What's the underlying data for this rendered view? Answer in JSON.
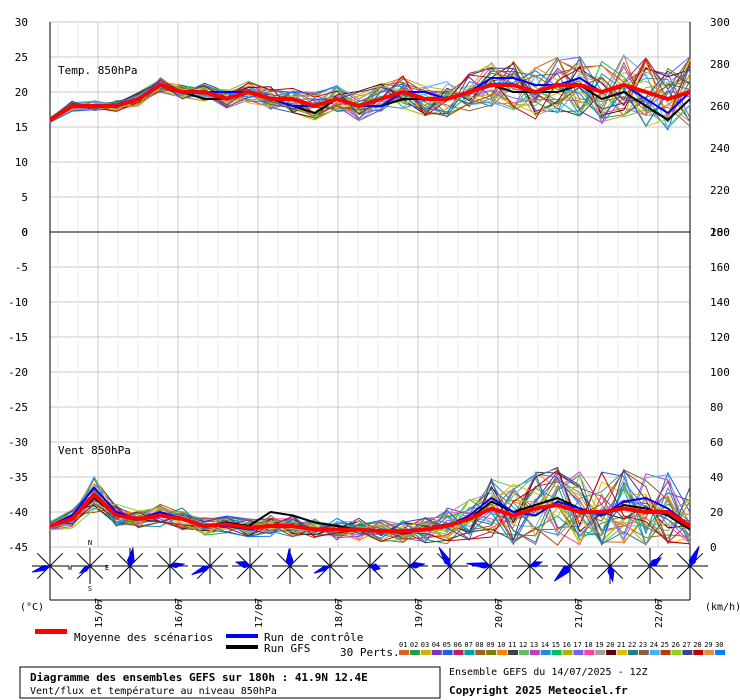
{
  "chart_data": {
    "type": "line",
    "panels": [
      {
        "label": "Temp. 850hPa",
        "left_axis": {
          "min": 0,
          "max": 30,
          "ticks": [
            0,
            5,
            10,
            15,
            20,
            25,
            30
          ]
        },
        "right_axis": {
          "min": 200,
          "max": 300,
          "ticks": [
            200,
            220,
            240,
            260,
            280,
            300
          ]
        },
        "mean_series": [
          16,
          18,
          18,
          18,
          19,
          21,
          20,
          20,
          19,
          20,
          19,
          19,
          18,
          19,
          18,
          19,
          20,
          19,
          19,
          20,
          21,
          21,
          20,
          21,
          21,
          20,
          21,
          20,
          19,
          20
        ],
        "control_series": [
          16,
          18,
          18,
          18,
          19,
          21,
          20,
          20,
          20,
          20,
          19,
          18,
          18,
          19,
          18,
          18,
          20,
          20,
          19,
          20,
          22,
          22,
          21,
          21,
          22,
          20,
          21,
          19,
          17,
          20
        ],
        "gfs_series": [
          16,
          18,
          18,
          18,
          19,
          21,
          20,
          19,
          19,
          20,
          19,
          18,
          17,
          19,
          18,
          18,
          19,
          19,
          19,
          20,
          21,
          20,
          20,
          20,
          21,
          19,
          20,
          18,
          16,
          19
        ],
        "perturbation_spread": [
          0.3,
          0.6,
          0.6,
          0.6,
          0.8,
          0.8,
          0.8,
          1.0,
          1.2,
          1.2,
          1.4,
          1.5,
          1.6,
          1.6,
          1.7,
          1.7,
          1.8,
          1.9,
          2.0,
          2.2,
          2.5,
          2.8,
          3.0,
          3.2,
          3.4,
          3.5,
          3.6,
          3.8,
          4.0,
          4.0
        ]
      },
      {
        "label": "Vent 850hPa",
        "left_axis": {
          "min": -45,
          "max": 0,
          "ticks": [
            -45,
            -40,
            -35,
            -30,
            -25,
            -20,
            -15,
            -10,
            -5,
            0
          ]
        },
        "right_axis": {
          "min": 0,
          "max": 180,
          "ticks": [
            0,
            20,
            40,
            60,
            80,
            100,
            120,
            140,
            160,
            180
          ]
        },
        "mean_series": [
          12,
          16,
          30,
          18,
          16,
          18,
          16,
          12,
          13,
          11,
          12,
          12,
          10,
          10,
          10,
          9,
          9,
          10,
          12,
          16,
          22,
          18,
          22,
          24,
          20,
          20,
          22,
          20,
          20,
          12
        ],
        "control_series": [
          12,
          18,
          34,
          20,
          16,
          20,
          16,
          12,
          12,
          10,
          12,
          12,
          10,
          10,
          10,
          9,
          8,
          10,
          12,
          18,
          28,
          20,
          18,
          26,
          22,
          18,
          26,
          28,
          22,
          12
        ],
        "gfs_series": [
          12,
          16,
          28,
          18,
          16,
          18,
          16,
          12,
          14,
          12,
          20,
          18,
          14,
          12,
          10,
          9,
          9,
          10,
          12,
          16,
          26,
          20,
          24,
          28,
          22,
          18,
          24,
          22,
          18,
          10
        ],
        "perturbation_spread": [
          2,
          4,
          8,
          5,
          4,
          5,
          5,
          4,
          4,
          4,
          5,
          5,
          5,
          5,
          5,
          5,
          5,
          6,
          8,
          10,
          14,
          14,
          16,
          18,
          18,
          18,
          18,
          18,
          18,
          18
        ]
      }
    ],
    "x_ticks": [
      "15/07",
      "16/07",
      "17/07",
      "18/07",
      "19/07",
      "20/07",
      "21/07",
      "22/07"
    ],
    "wind_roses": {
      "labels": {
        "n": "N",
        "s": "S",
        "e": "E",
        "w": "W"
      },
      "count": 17
    },
    "left_unit": "(°C)",
    "right_unit": "(km/h)",
    "legend": {
      "mean": "Moyenne des scénarios",
      "control": "Run de contrôle",
      "gfs": "Run GFS",
      "perts": "30 Perts."
    },
    "pert_numbers": [
      "01",
      "02",
      "03",
      "04",
      "05",
      "06",
      "07",
      "08",
      "09",
      "10",
      "11",
      "12",
      "13",
      "14",
      "15",
      "16",
      "17",
      "18",
      "19",
      "20",
      "21",
      "22",
      "23",
      "24",
      "25",
      "26",
      "27",
      "28",
      "29",
      "30"
    ],
    "pert_colors": [
      "#e06020",
      "#20a040",
      "#d0b000",
      "#8030c0",
      "#2060e0",
      "#c02060",
      "#00a0a0",
      "#a06020",
      "#808000",
      "#ff8000",
      "#404040",
      "#60c060",
      "#c040c0",
      "#2090d0",
      "#00c060",
      "#b0b000",
      "#7060ff",
      "#ff40a0",
      "#a0a0a0",
      "#600000",
      "#e0c000",
      "#208080",
      "#806040",
      "#40b0ff",
      "#b04000",
      "#90d020",
      "#404090",
      "#c00000",
      "#e09040",
      "#0080ff"
    ],
    "colors": {
      "mean": "#ff0000",
      "control": "#0000ff",
      "gfs": "#000000"
    },
    "footer": {
      "title": "Diagramme des ensembles GEFS sur 180h : 41.9N 12.4E",
      "subtitle": "Vent/flux et température au niveau 850hPa",
      "run": "Ensemble GEFS du 14/07/2025 - 12Z",
      "copyright": "Copyright 2025 Meteociel.fr"
    }
  }
}
